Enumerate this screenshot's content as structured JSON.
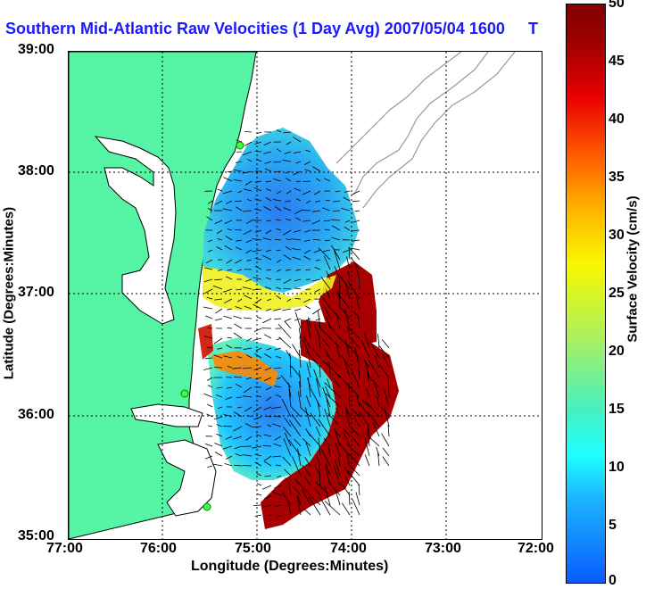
{
  "title": "Southern Mid-Atlantic Raw Velocities (1 Day Avg) 2007/05/04 1600",
  "title_tail": "T",
  "x_axis": {
    "label": "Longitude (Degrees:Minutes)",
    "ticks": [
      "77:00",
      "76:00",
      "75:00",
      "74:00",
      "73:00",
      "72:00"
    ]
  },
  "y_axis": {
    "label": "Latitude (Degrees:Minutes)",
    "ticks": [
      "39:00",
      "38:00",
      "37:00",
      "36:00",
      "35:00"
    ]
  },
  "colorbar": {
    "label": "Surface Velocity (cm/s)",
    "ticks": [
      "50",
      "45",
      "40",
      "35",
      "30",
      "25",
      "20",
      "15",
      "10",
      "5",
      "0"
    ],
    "range": [
      0,
      50
    ]
  },
  "colors": {
    "title": "#1a1aff",
    "land": "#55f5a5",
    "coastline": "#000000",
    "bathymetry": "#999999"
  }
}
